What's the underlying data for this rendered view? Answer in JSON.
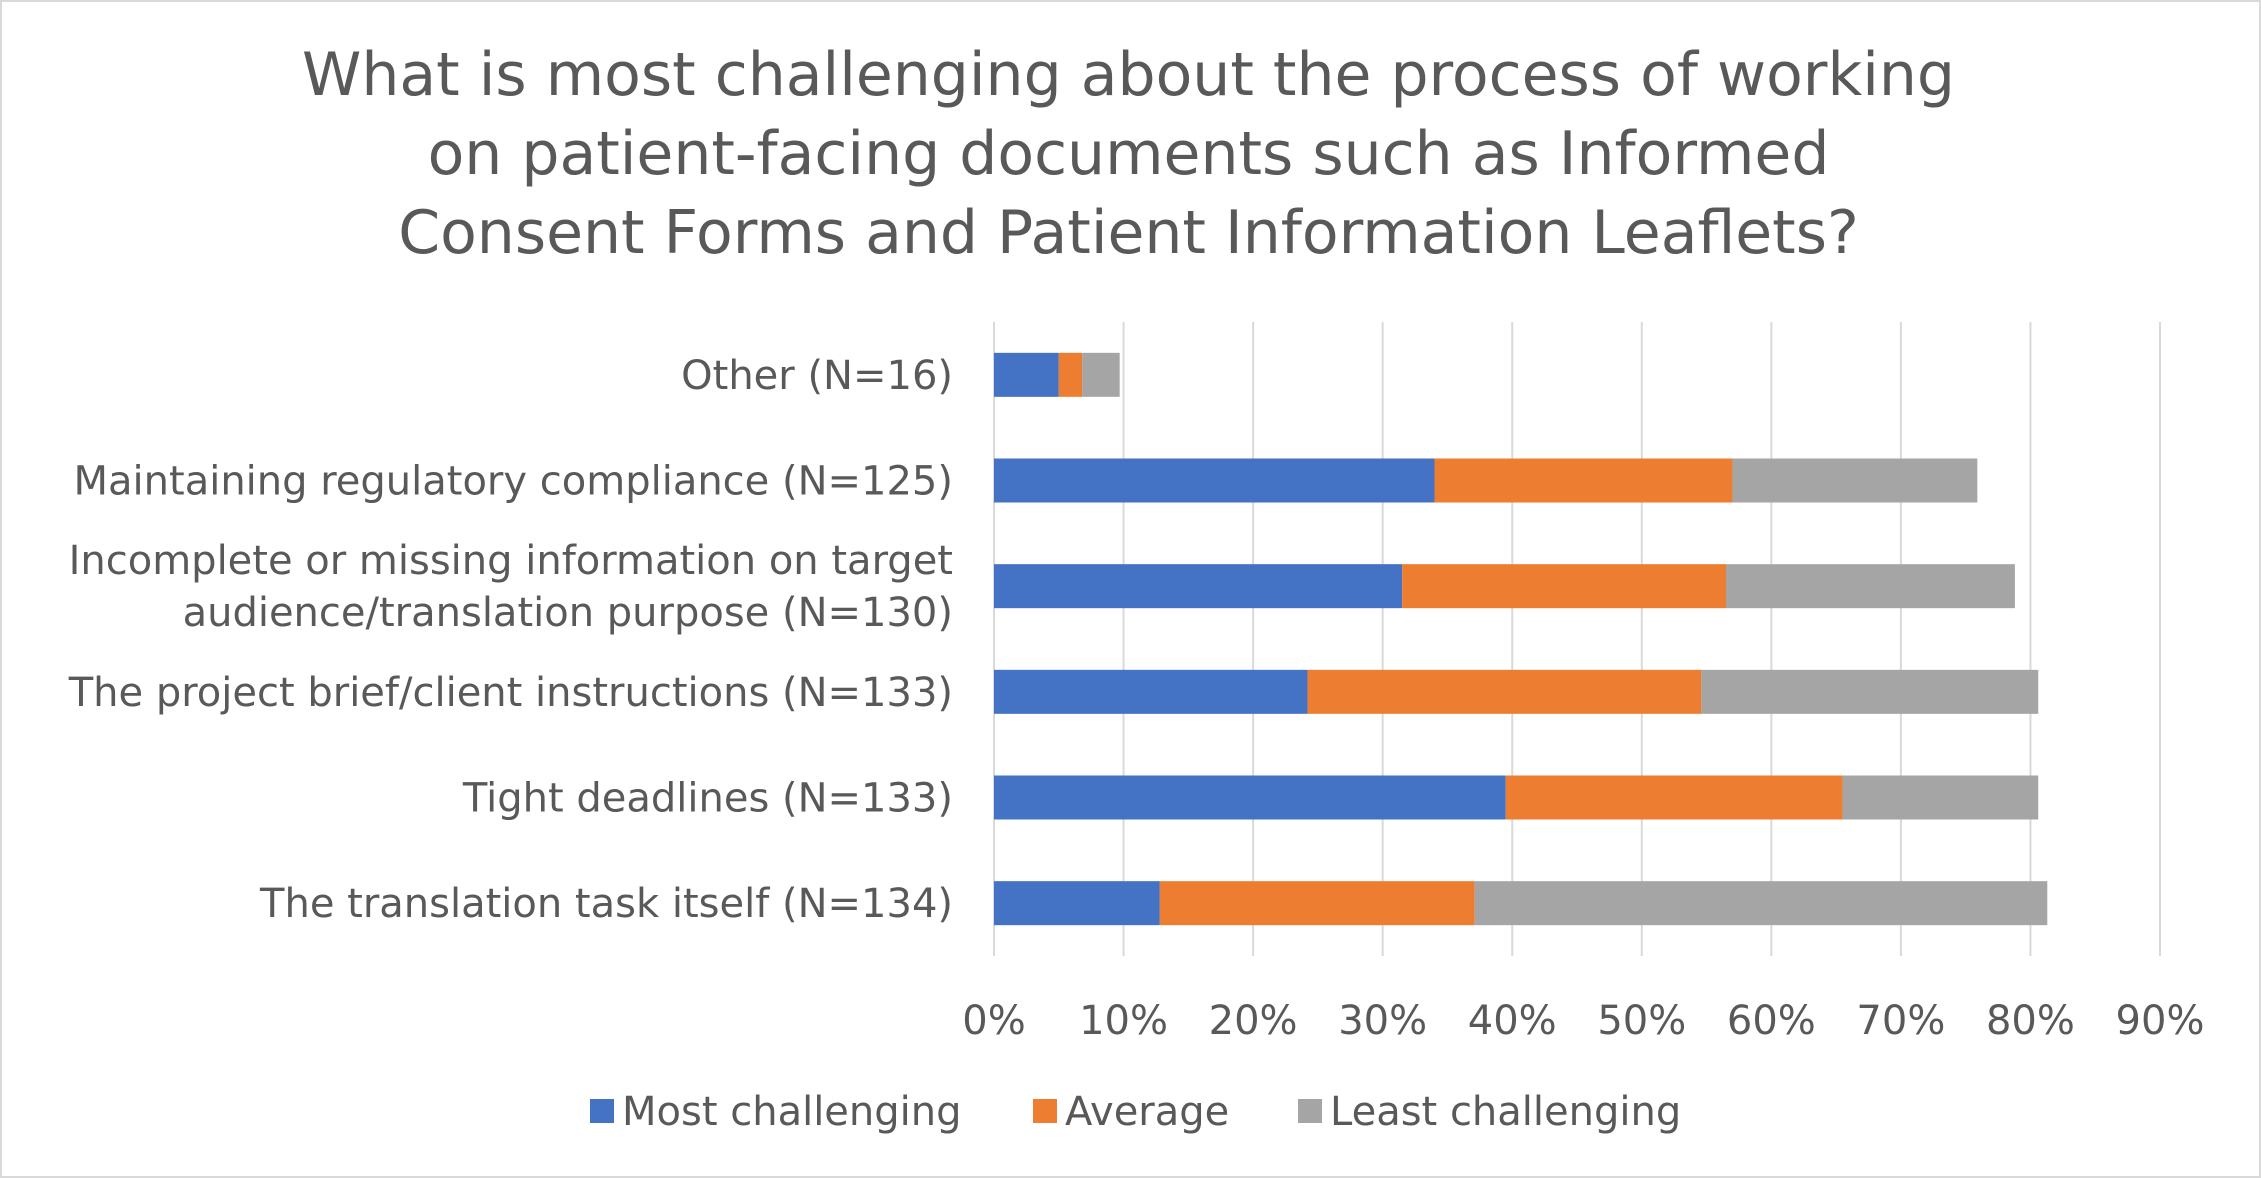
{
  "chart_data": {
    "type": "bar",
    "orientation": "horizontal",
    "stacked": true,
    "title": "What is most challenging about the process of working\non patient-facing documents such as Informed\nConsent Forms and Patient Information Leaflets?",
    "categories": [
      [
        "Other (N=16)"
      ],
      [
        "Maintaining regulatory compliance (N=125)"
      ],
      [
        "Incomplete or missing information on target",
        "audience/translation purpose (N=130)"
      ],
      [
        "The project brief/client instructions (N=133)"
      ],
      [
        "Tight deadlines (N=133)"
      ],
      [
        "The translation task itself (N=134)"
      ]
    ],
    "series": [
      {
        "name": "Most challenging",
        "color": "#4472c4",
        "values": [
          5.0,
          34.0,
          31.5,
          24.2,
          39.5,
          12.8
        ]
      },
      {
        "name": "Average",
        "color": "#ed7d31",
        "values": [
          1.8,
          23.0,
          25.0,
          30.4,
          26.0,
          24.3
        ]
      },
      {
        "name": "Least challenging",
        "color": "#a5a5a5",
        "values": [
          2.9,
          18.9,
          22.3,
          26.0,
          15.1,
          44.2
        ]
      }
    ],
    "xlim": [
      0,
      90
    ],
    "xticks": [
      0,
      10,
      20,
      30,
      40,
      50,
      60,
      70,
      80,
      90
    ],
    "xtick_labels": [
      "0%",
      "10%",
      "20%",
      "30%",
      "40%",
      "50%",
      "60%",
      "70%",
      "80%",
      "90%"
    ],
    "grid": true,
    "gridline_color": "#d9d9d9",
    "legend_position": "bottom"
  }
}
